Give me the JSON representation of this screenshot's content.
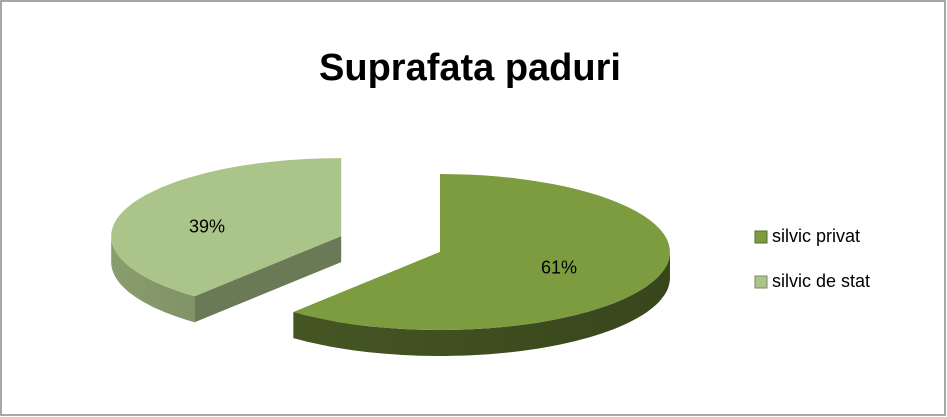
{
  "chart_data": {
    "type": "pie",
    "title": "Suprafata paduri",
    "categories": [
      "silvic privat",
      "silvic de stat"
    ],
    "values": [
      61,
      39
    ],
    "value_labels": [
      "61%",
      "39%"
    ],
    "colors": [
      "#7d9c3f",
      "#abc48a"
    ],
    "legend": "right"
  }
}
